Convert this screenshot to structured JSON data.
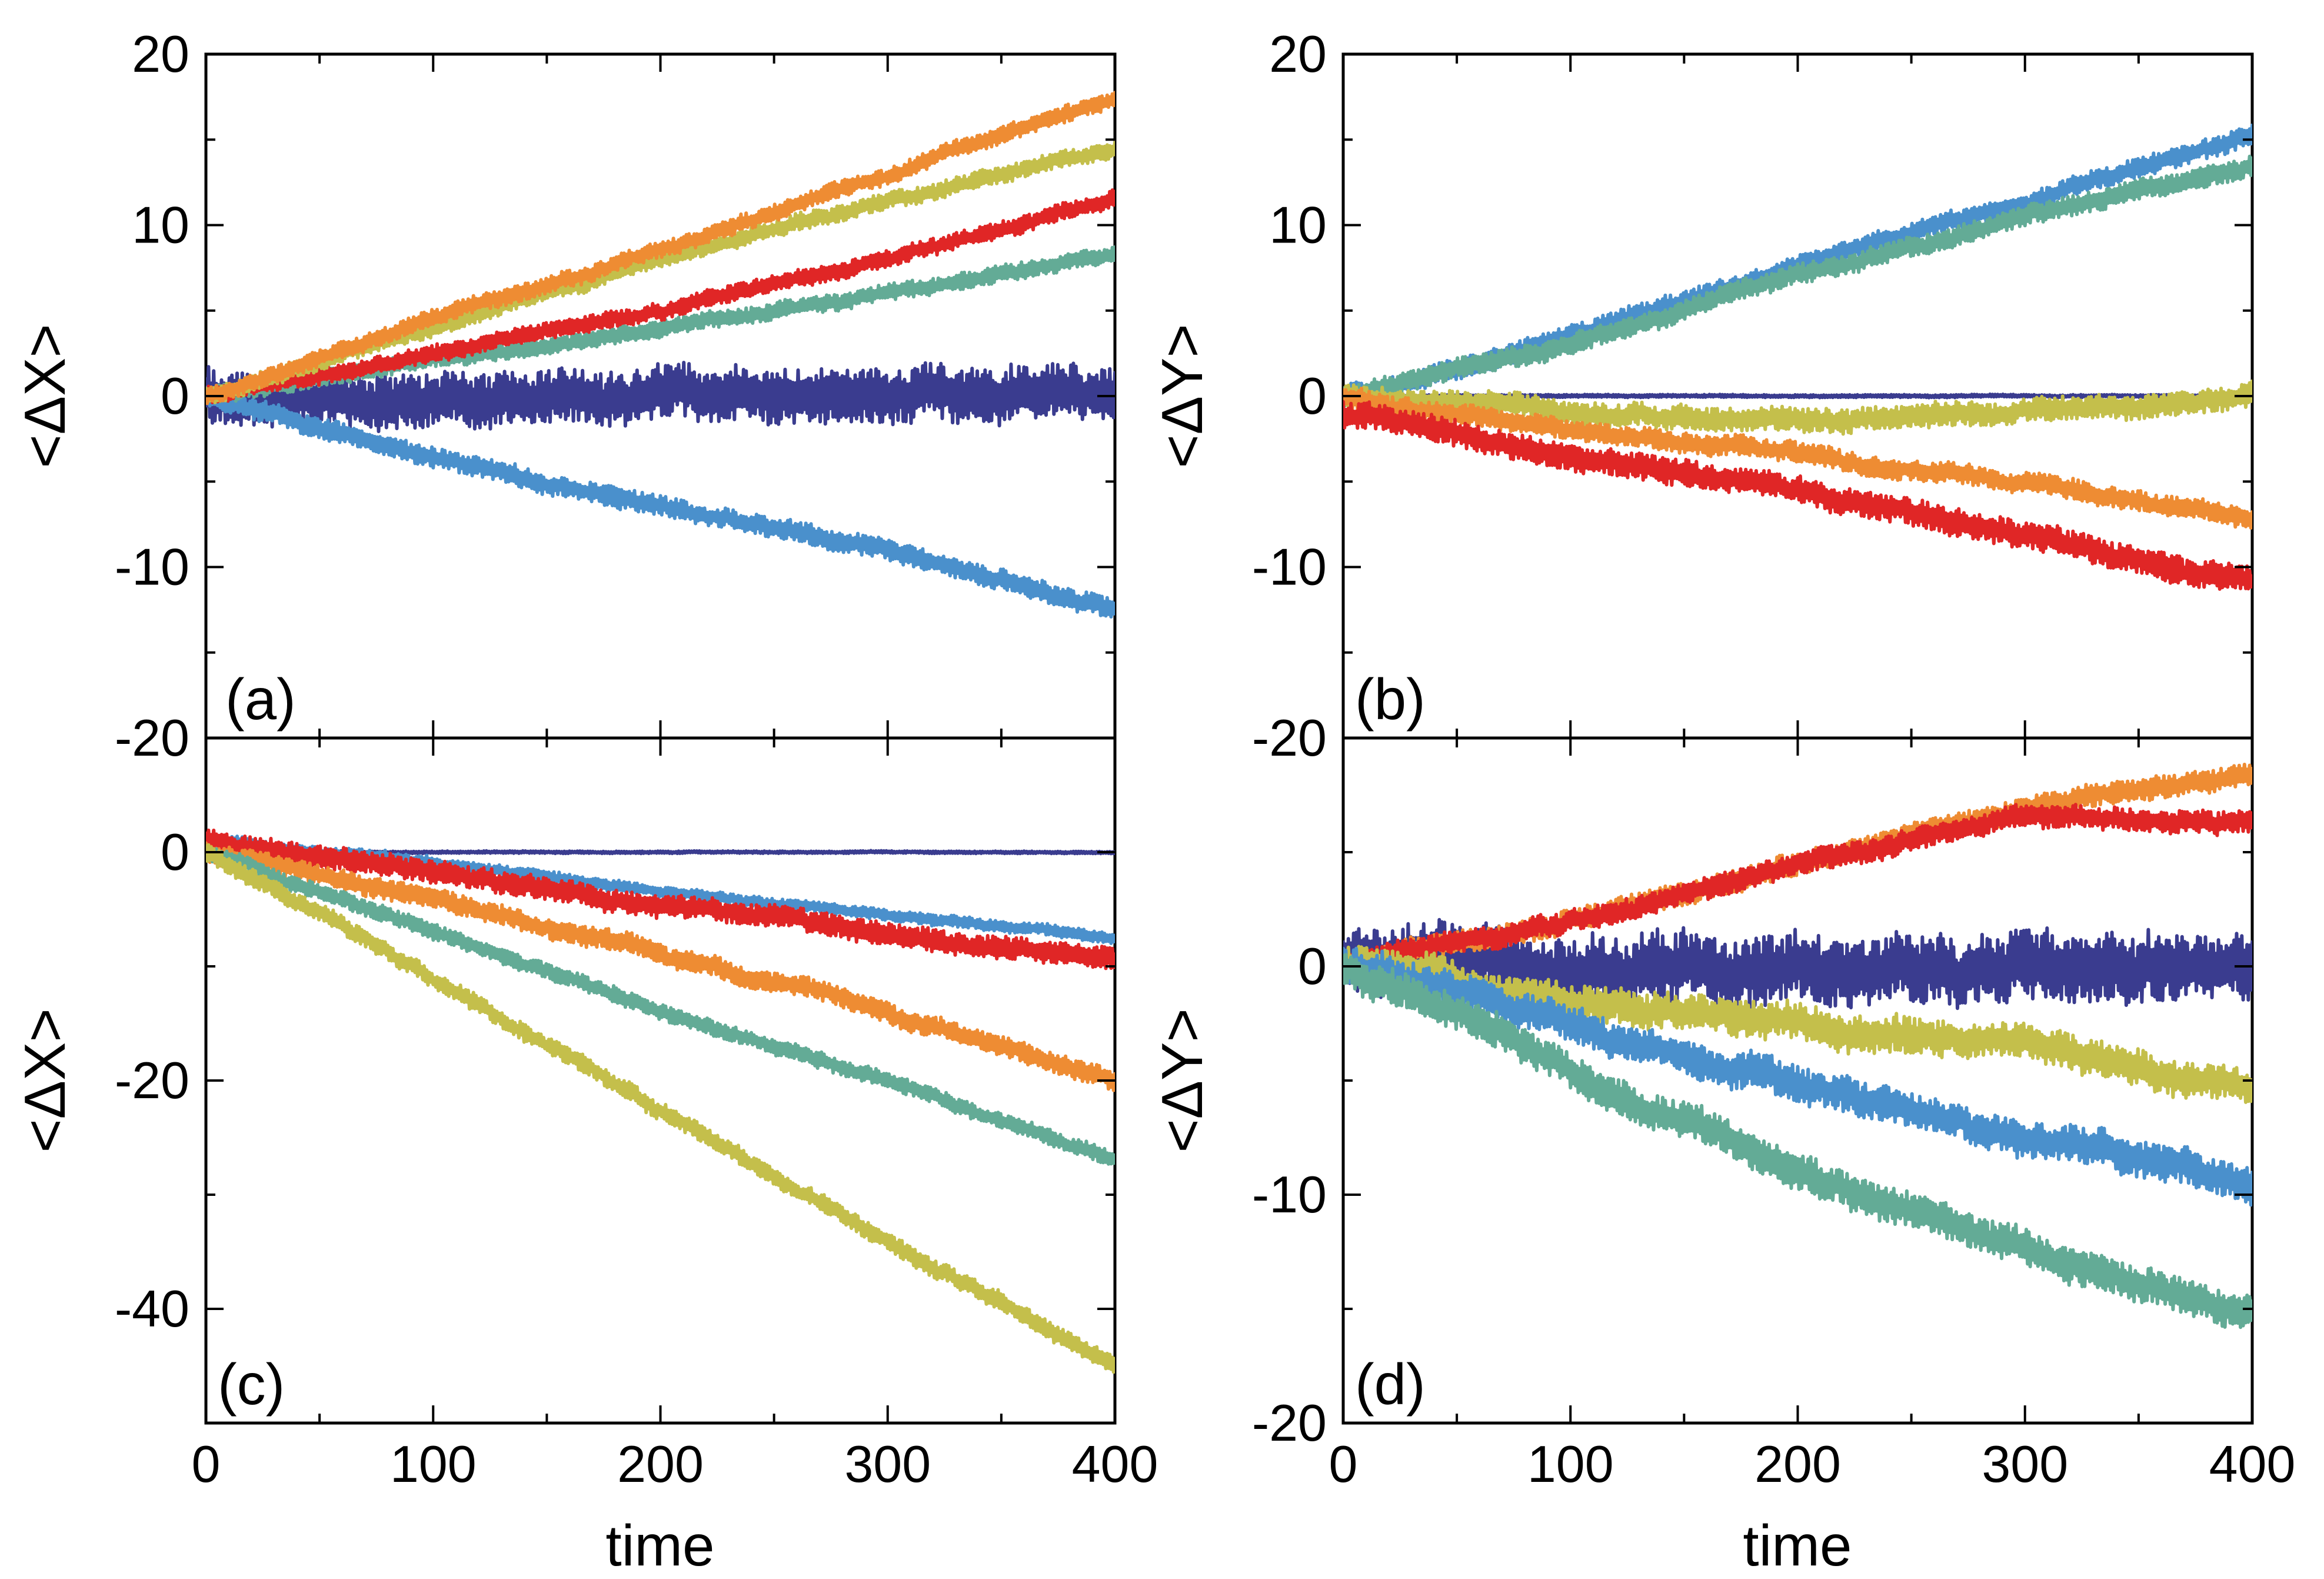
{
  "chart_data": [
    {
      "type": "line",
      "panel": "(a)",
      "xlabel": "",
      "ylabel": "<ΔX>",
      "xlim": [
        0,
        400
      ],
      "ylim": [
        -20,
        20
      ],
      "xticks": [
        "0",
        "100",
        "200",
        "300",
        "400"
      ],
      "yticks": [
        "-20",
        "-10",
        "0",
        "10",
        "20"
      ],
      "series": [
        {
          "name": "dark-blue",
          "color": "#3a3c8f",
          "x": [
            0,
            400
          ],
          "values": [
            0,
            0
          ],
          "noise": 1.6
        },
        {
          "name": "light-blue",
          "color": "#4a90cc",
          "x": [
            0,
            100,
            200,
            300,
            400
          ],
          "values": [
            0,
            -3.5,
            -6.5,
            -9.0,
            -12.5
          ],
          "noise": 0.6
        },
        {
          "name": "teal",
          "color": "#63ab96",
          "x": [
            0,
            100,
            200,
            300,
            400
          ],
          "values": [
            0,
            2.0,
            4.0,
            6.0,
            8.3
          ],
          "noise": 0.5
        },
        {
          "name": "red",
          "color": "#e02626",
          "x": [
            0,
            100,
            200,
            300,
            400
          ],
          "values": [
            0,
            2.5,
            5.0,
            8.0,
            11.5
          ],
          "noise": 0.5
        },
        {
          "name": "olive",
          "color": "#c4bf4b",
          "x": [
            0,
            100,
            200,
            300,
            400
          ],
          "values": [
            0,
            4.0,
            8.0,
            11.5,
            14.3
          ],
          "noise": 0.5
        },
        {
          "name": "orange",
          "color": "#ee8c33",
          "x": [
            0,
            100,
            200,
            300,
            400
          ],
          "values": [
            0,
            4.5,
            8.5,
            13.0,
            17.5
          ],
          "noise": 0.5
        }
      ]
    },
    {
      "type": "line",
      "panel": "(b)",
      "xlabel": "",
      "ylabel": "<ΔY>",
      "xlim": [
        0,
        400
      ],
      "ylim": [
        -20,
        20
      ],
      "xticks": [
        "0",
        "100",
        "200",
        "300",
        "400"
      ],
      "yticks": [
        "-20",
        "-10",
        "0",
        "10",
        "20"
      ],
      "series": [
        {
          "name": "dark-blue",
          "color": "#3a3c8f",
          "x": [
            0,
            400
          ],
          "values": [
            0,
            0
          ],
          "noise": 0.08
        },
        {
          "name": "light-blue",
          "color": "#4a90cc",
          "x": [
            0,
            100,
            200,
            300,
            400
          ],
          "values": [
            0,
            3.5,
            7.5,
            11.5,
            15.0
          ],
          "noise": 0.6
        },
        {
          "name": "teal",
          "color": "#63ab96",
          "x": [
            0,
            100,
            200,
            300,
            400
          ],
          "values": [
            0,
            3.0,
            7.0,
            10.5,
            13.5
          ],
          "noise": 0.6
        },
        {
          "name": "olive",
          "color": "#c4bf4b",
          "x": [
            0,
            100,
            200,
            300,
            400
          ],
          "values": [
            0,
            -1.0,
            -1.5,
            -1.0,
            0.0
          ],
          "noise": 0.7
        },
        {
          "name": "orange",
          "color": "#ee8c33",
          "x": [
            0,
            100,
            200,
            300,
            400
          ],
          "values": [
            0,
            -2.0,
            -3.5,
            -5.0,
            -7.0
          ],
          "noise": 0.6
        },
        {
          "name": "red",
          "color": "#e02626",
          "x": [
            0,
            100,
            200,
            300,
            400
          ],
          "values": [
            -1.0,
            -3.5,
            -5.5,
            -8.0,
            -11.0
          ],
          "noise": 0.8
        }
      ]
    },
    {
      "type": "line",
      "panel": "(c)",
      "xlabel": "time",
      "ylabel": "<ΔX>",
      "xlim": [
        0,
        400
      ],
      "ylim": [
        -50,
        10
      ],
      "xticks": [
        "0",
        "100",
        "200",
        "300",
        "400"
      ],
      "yticks": [
        "-40",
        "-20",
        "0"
      ],
      "series": [
        {
          "name": "dark-blue",
          "color": "#3a3c8f",
          "x": [
            0,
            400
          ],
          "values": [
            0,
            0
          ],
          "noise": 0.1
        },
        {
          "name": "light-blue",
          "color": "#4a90cc",
          "x": [
            0,
            100,
            200,
            300,
            400
          ],
          "values": [
            1.0,
            -1.0,
            -3.5,
            -5.5,
            -7.5
          ],
          "noise": 0.5
        },
        {
          "name": "red",
          "color": "#e02626",
          "x": [
            0,
            100,
            200,
            300,
            400
          ],
          "values": [
            1.0,
            -1.5,
            -4.5,
            -7.0,
            -9.5
          ],
          "noise": 1.0
        },
        {
          "name": "orange",
          "color": "#ee8c33",
          "x": [
            0,
            100,
            200,
            300,
            400
          ],
          "values": [
            0,
            -4.0,
            -9.0,
            -14.0,
            -20.0
          ],
          "noise": 0.9
        },
        {
          "name": "teal",
          "color": "#63ab96",
          "x": [
            0,
            100,
            200,
            300,
            400
          ],
          "values": [
            0,
            -7.0,
            -14.0,
            -20.0,
            -27.0
          ],
          "noise": 0.7
        },
        {
          "name": "olive",
          "color": "#c4bf4b",
          "x": [
            0,
            100,
            200,
            300,
            400
          ],
          "values": [
            0,
            -11.0,
            -22.5,
            -34.0,
            -45.0
          ],
          "noise": 0.8
        }
      ]
    },
    {
      "type": "line",
      "panel": "(d)",
      "xlabel": "time",
      "ylabel": "<ΔY>",
      "xlim": [
        0,
        400
      ],
      "ylim": [
        -20,
        10
      ],
      "xticks": [
        "0",
        "100",
        "200",
        "300",
        "400"
      ],
      "yticks": [
        "-20",
        "-10",
        "0"
      ],
      "series": [
        {
          "name": "dark-blue",
          "color": "#3a3c8f",
          "x": [
            0,
            400
          ],
          "values": [
            0,
            0
          ],
          "noise": 1.5
        },
        {
          "name": "orange",
          "color": "#ee8c33",
          "x": [
            0,
            100,
            200,
            300,
            400
          ],
          "values": [
            0,
            2.0,
            4.5,
            7.0,
            8.3
          ],
          "noise": 0.5
        },
        {
          "name": "red",
          "color": "#e02626",
          "x": [
            0,
            100,
            200,
            300,
            400
          ],
          "values": [
            0,
            2.0,
            4.5,
            6.5,
            6.3
          ],
          "noise": 0.5
        },
        {
          "name": "olive",
          "color": "#c4bf4b",
          "x": [
            0,
            100,
            200,
            300,
            400
          ],
          "values": [
            0,
            -1.5,
            -2.5,
            -3.5,
            -5.5
          ],
          "noise": 0.8
        },
        {
          "name": "light-blue",
          "color": "#4a90cc",
          "x": [
            0,
            100,
            200,
            300,
            400
          ],
          "values": [
            0,
            -2.5,
            -5.0,
            -7.5,
            -9.5
          ],
          "noise": 0.8
        },
        {
          "name": "teal",
          "color": "#63ab96",
          "x": [
            0,
            100,
            200,
            300,
            400
          ],
          "values": [
            0,
            -4.5,
            -9.0,
            -12.5,
            -15.0
          ],
          "noise": 0.8
        }
      ]
    }
  ]
}
